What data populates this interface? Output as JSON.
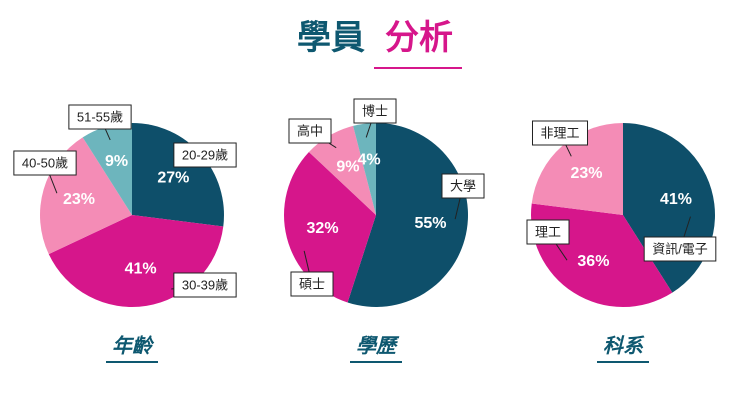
{
  "title_parts": [
    "學員",
    "分析"
  ],
  "chart_data": [
    {
      "type": "pie",
      "title": "年齡",
      "categories": [
        "20-29歲",
        "30-39歲",
        "40-50歲",
        "51-55歲"
      ],
      "values": [
        27,
        41,
        23,
        9
      ],
      "value_labels": [
        "27%",
        "41%",
        "23%",
        "9%"
      ],
      "colors": [
        "#0e4f6a",
        "#d6168b",
        "#f48cb6",
        "#6db5bd"
      ]
    },
    {
      "type": "pie",
      "title": "學歷",
      "categories": [
        "大學",
        "碩士",
        "高中",
        "博士"
      ],
      "values": [
        55,
        32,
        9,
        4
      ],
      "value_labels": [
        "55%",
        "32%",
        "9%",
        "4%"
      ],
      "colors": [
        "#0e4f6a",
        "#d6168b",
        "#f48cb6",
        "#6db5bd"
      ]
    },
    {
      "type": "pie",
      "title": "科系",
      "categories": [
        "資訊/電子",
        "理工",
        "非理工"
      ],
      "values": [
        41,
        36,
        23
      ],
      "value_labels": [
        "41%",
        "36%",
        "23%"
      ],
      "colors": [
        "#0e4f6a",
        "#d6168b",
        "#f48cb6"
      ]
    }
  ]
}
